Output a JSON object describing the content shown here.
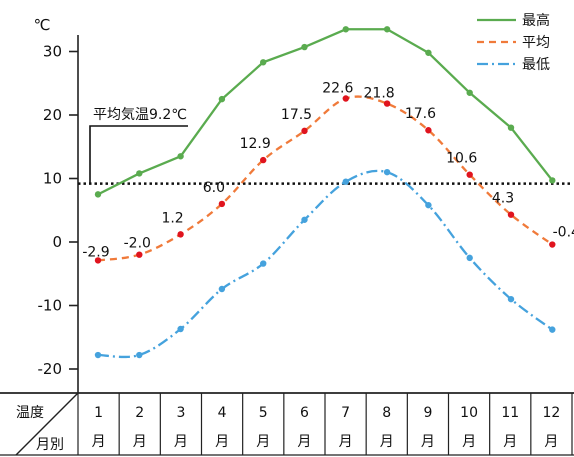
{
  "chart_data": {
    "type": "line",
    "unit_label": "℃",
    "categories": [
      "1",
      "2",
      "3",
      "4",
      "5",
      "6",
      "7",
      "8",
      "9",
      "10",
      "11",
      "12"
    ],
    "series": [
      {
        "name": "最高",
        "color": "#5aab4f",
        "style": "solid",
        "values": [
          7.5,
          10.8,
          13.5,
          22.5,
          28.3,
          30.7,
          33.5,
          33.5,
          29.8,
          23.5,
          18.0,
          9.7
        ]
      },
      {
        "name": "平均",
        "color": "#f07a3a",
        "style": "dashed",
        "marker_color": "#e0141e",
        "values": [
          -2.9,
          -2.0,
          1.2,
          6.0,
          12.9,
          17.5,
          22.6,
          21.8,
          17.6,
          10.6,
          4.3,
          -0.4
        ]
      },
      {
        "name": "最低",
        "color": "#45a2dd",
        "style": "dashdot",
        "values": [
          -17.8,
          -17.8,
          -13.7,
          -7.4,
          -3.4,
          3.5,
          9.5,
          11.0,
          5.8,
          -2.5,
          -9.0,
          -13.8
        ]
      }
    ],
    "data_labels": [
      "-2.9",
      "-2.0",
      "1.2",
      "6.0",
      "12.9",
      "17.5",
      "22.6",
      "21.8",
      "17.6",
      "10.6",
      "4.3",
      "-0.4"
    ],
    "yticks": [
      "30",
      "20",
      "10",
      "0",
      "-10",
      "-20"
    ],
    "ylim": [
      -25,
      37
    ],
    "reference": {
      "value": 9.2,
      "label": "平均気温9.2℃"
    },
    "table_header": {
      "top": "温度",
      "bottom": "月別"
    },
    "month_unit": "月",
    "legend_position": "top-right",
    "grid": false
  }
}
